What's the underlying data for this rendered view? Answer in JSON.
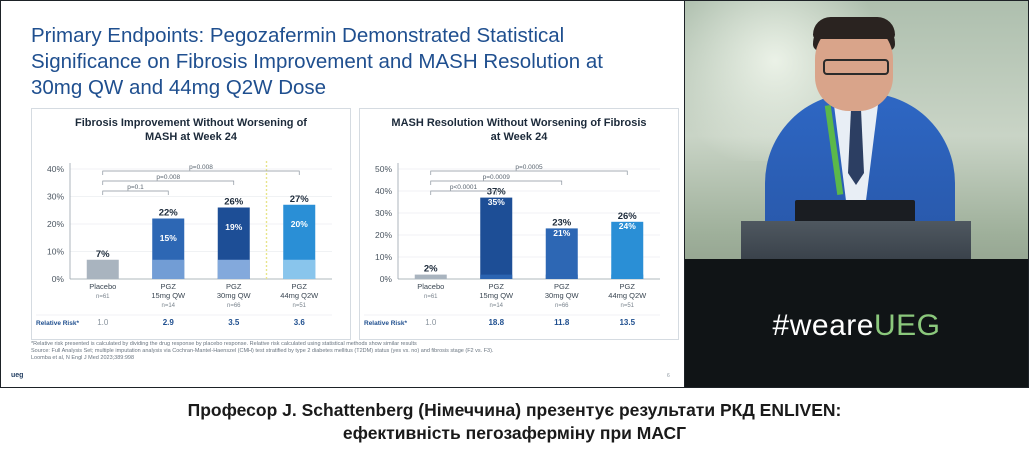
{
  "slide": {
    "title": "Primary Endpoints: Pegozafermin Demonstrated Statistical\nSignificance on Fibrosis Improvement and MASH Resolution at\n30mg QW and 44mg Q2W Dose",
    "footnote_lines": [
      "*Relative risk presented is calculated by dividing the drug response by placebo response. Relative risk calculated using statistical methods show similar results",
      "Source: Full Analysis Set; multiple imputation analysis via Cochran-Mantel-Haenszel (CMH) test stratified by type 2 diabetes mellitus (T2DM) status (yes vs. no) and fibrosis stage (F2 vs. F3).",
      "Loomba et al, N Engl J Med 2023;389:998"
    ],
    "logo": "ueg",
    "page_number": "6"
  },
  "chart_data": [
    {
      "type": "bar",
      "title": "Fibrosis Improvement Without Worsening of\nMASH at Week 24",
      "categories": [
        "Placebo",
        "PGZ\n15mg QW",
        "PGZ\n30mg QW",
        "PGZ\n44mg Q2W"
      ],
      "n_labels": [
        "n=61",
        "n=14",
        "n=66",
        "n=51"
      ],
      "values": [
        7,
        22,
        26,
        27
      ],
      "inner_values": [
        null,
        15,
        19,
        20
      ],
      "value_labels": [
        "7%",
        "22%",
        "26%",
        "27%"
      ],
      "inner_labels": [
        "",
        "15%",
        "19%",
        "20%"
      ],
      "yticks": [
        "0%",
        "10%",
        "20%",
        "30%",
        "40%"
      ],
      "ylim": [
        0,
        40
      ],
      "p_values": [
        {
          "label": "p=0.1",
          "to": 1
        },
        {
          "label": "p=0.008",
          "to": 2
        },
        {
          "label": "p=0.008",
          "to": 3
        }
      ],
      "relative_risk_label": "Relative Risk*",
      "relative_risk": [
        "1.0",
        "2.9",
        "3.5",
        "3.6"
      ],
      "colors": [
        "#a9b4bf",
        "#2d67b4",
        "#1d4e96",
        "#2a8fd6"
      ],
      "inner_colors": [
        "#a9b4bf",
        "#7aa3d8",
        "#8fb4e3",
        "#94cbee"
      ],
      "dotted_divider_after": 2
    },
    {
      "type": "bar",
      "title": "MASH Resolution Without Worsening of Fibrosis\nat Week 24",
      "categories": [
        "Placebo",
        "PGZ\n15mg QW",
        "PGZ\n30mg QW",
        "PGZ\n44mg Q2W"
      ],
      "n_labels": [
        "n=61",
        "n=14",
        "n=66",
        "n=51"
      ],
      "values": [
        2,
        37,
        23,
        26
      ],
      "inner_values": [
        null,
        35,
        21,
        24
      ],
      "value_labels": [
        "2%",
        "37%",
        "23%",
        "26%"
      ],
      "inner_labels": [
        "",
        "35%",
        "21%",
        "24%"
      ],
      "yticks": [
        "0%",
        "10%",
        "20%",
        "30%",
        "40%",
        "50%"
      ],
      "ylim": [
        0,
        50
      ],
      "p_values": [
        {
          "label": "p<0.0001",
          "to": 1
        },
        {
          "label": "p=0.0009",
          "to": 2
        },
        {
          "label": "p=0.0005",
          "to": 3
        }
      ],
      "relative_risk_label": "Relative Risk*",
      "relative_risk": [
        "1.0",
        "18.8",
        "11.8",
        "13.5"
      ],
      "colors": [
        "#a9b4bf",
        "#1d4e96",
        "#2d67b4",
        "#2a8fd6"
      ],
      "inner_colors": [
        "#a9b4bf",
        "#2d67b4",
        "#2d67b4",
        "#2a8fd6"
      ],
      "dotted_divider_after": null
    }
  ],
  "video": {
    "hashtag_prefix": "#weare",
    "hashtag_brand": "UEG"
  },
  "caption": {
    "line1": "Професор J. Schattenberg (Німеччина) презентує результати РКД ENLIVEN:",
    "line2": "ефективність пегозаферміну при МАСГ"
  }
}
